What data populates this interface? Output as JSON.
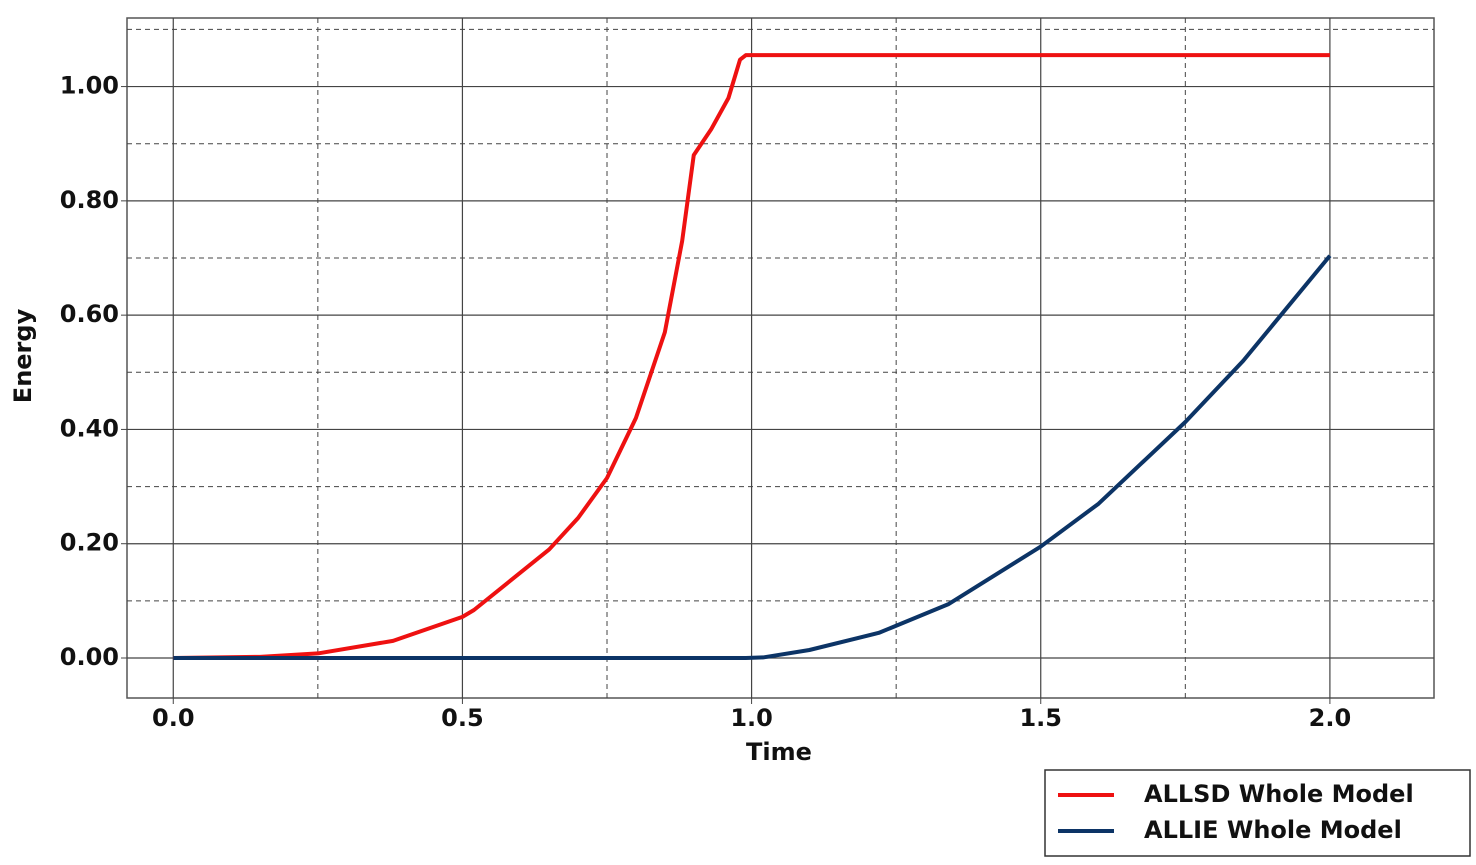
{
  "chart_data": {
    "type": "line",
    "x_label": "Time",
    "y_label": "Energy",
    "x": [
      0,
      0.15,
      0.25,
      0.38,
      0.5,
      0.52,
      0.65,
      0.7,
      0.75,
      0.8,
      0.85,
      0.88,
      0.9,
      0.93,
      0.96,
      0.98,
      0.99,
      1.02,
      1.1,
      1.22,
      1.34,
      1.5,
      1.6,
      1.75,
      1.85,
      2.0
    ],
    "series": [
      {
        "name": "ALLSD Whole Model",
        "color": "#ee1111",
        "values": [
          0,
          0.002,
          0.008,
          0.03,
          0.072,
          0.084,
          0.19,
          0.245,
          0.315,
          0.42,
          0.57,
          0.73,
          0.88,
          0.925,
          0.98,
          1.047,
          1.055,
          1.055,
          1.055,
          1.055,
          1.055,
          1.055,
          1.055,
          1.055,
          1.055,
          1.055
        ]
      },
      {
        "name": "ALLIE Whole Model",
        "color": "#0c3466",
        "values": [
          0,
          0,
          0,
          0,
          0,
          0,
          0,
          0,
          0,
          0,
          0,
          0,
          0,
          0,
          0,
          0,
          0,
          0.001,
          0.014,
          0.044,
          0.094,
          0.195,
          0.27,
          0.413,
          0.52,
          0.704
        ]
      }
    ],
    "xlim": [
      -0.08,
      2.18
    ],
    "ylim": [
      -0.07,
      1.12
    ],
    "xticks": [
      {
        "value": 0,
        "label": "0.0"
      },
      {
        "value": 0.5,
        "label": "0.5"
      },
      {
        "value": 1,
        "label": "1.0"
      },
      {
        "value": 1.5,
        "label": "1.5"
      },
      {
        "value": 2,
        "label": "2.0"
      }
    ],
    "yticks": [
      {
        "value": 0,
        "label": "0.00"
      },
      {
        "value": 0.2,
        "label": "0.20"
      },
      {
        "value": 0.4,
        "label": "0.40"
      },
      {
        "value": 0.6,
        "label": "0.60"
      },
      {
        "value": 0.8,
        "label": "0.80"
      },
      {
        "value": 1,
        "label": "1.00"
      }
    ],
    "x_minor_grid": [
      0.25,
      0.75,
      1.25,
      1.75
    ],
    "y_minor_grid": [
      0.1,
      0.3,
      0.5,
      0.7,
      0.9,
      1.1
    ],
    "grid": true,
    "legend": "below-right"
  }
}
